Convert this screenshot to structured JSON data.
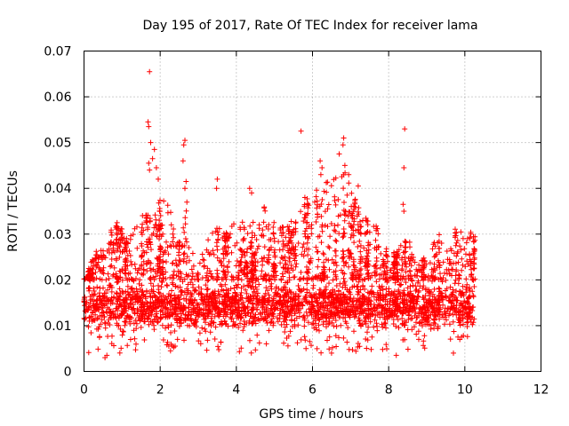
{
  "chart_data": {
    "type": "scatter",
    "title": "Day 195 of 2017, Rate Of TEC Index for receiver lama",
    "xlabel": "GPS time / hours",
    "ylabel": "ROTI / TECUs",
    "xlim": [
      0,
      12
    ],
    "ylim": [
      0,
      0.07
    ],
    "x_ticks": [
      "0",
      "2",
      "4",
      "6",
      "8",
      "10",
      "12"
    ],
    "y_ticks": [
      "0",
      "0.01",
      "0.02",
      "0.03",
      "0.04",
      "0.05",
      "0.06",
      "0.07"
    ],
    "grid": true,
    "marker": "+",
    "color": "#ff0000",
    "series": [
      {
        "name": "ROTI",
        "x_range_hours": [
          0,
          10.25
        ],
        "typical_band": [
          0.007,
          0.02
        ],
        "approx_upper_envelope": [
          [
            0.1,
            0.021
          ],
          [
            0.3,
            0.028
          ],
          [
            0.5,
            0.027
          ],
          [
            0.7,
            0.031
          ],
          [
            0.9,
            0.033
          ],
          [
            1.1,
            0.029
          ],
          [
            1.3,
            0.033
          ],
          [
            1.5,
            0.034
          ],
          [
            1.8,
            0.035
          ],
          [
            2.0,
            0.038
          ],
          [
            2.2,
            0.037
          ],
          [
            2.5,
            0.029
          ],
          [
            2.7,
            0.037
          ],
          [
            3.0,
            0.024
          ],
          [
            3.3,
            0.031
          ],
          [
            3.5,
            0.033
          ],
          [
            3.8,
            0.031
          ],
          [
            4.0,
            0.034
          ],
          [
            4.3,
            0.032
          ],
          [
            4.5,
            0.034
          ],
          [
            4.8,
            0.037
          ],
          [
            5.0,
            0.033
          ],
          [
            5.3,
            0.032
          ],
          [
            5.6,
            0.034
          ],
          [
            5.9,
            0.038
          ],
          [
            6.2,
            0.041
          ],
          [
            6.5,
            0.042
          ],
          [
            6.8,
            0.045
          ],
          [
            7.0,
            0.04
          ],
          [
            7.3,
            0.035
          ],
          [
            7.6,
            0.034
          ],
          [
            7.9,
            0.027
          ],
          [
            8.2,
            0.026
          ],
          [
            8.5,
            0.03
          ],
          [
            8.7,
            0.024
          ],
          [
            9.0,
            0.025
          ],
          [
            9.3,
            0.03
          ],
          [
            9.6,
            0.029
          ],
          [
            9.8,
            0.033
          ],
          [
            10.0,
            0.034
          ],
          [
            10.2,
            0.03
          ]
        ],
        "notable_points": [
          [
            1.72,
            0.0655
          ],
          [
            1.68,
            0.0545
          ],
          [
            1.7,
            0.0535
          ],
          [
            1.75,
            0.05
          ],
          [
            1.85,
            0.0485
          ],
          [
            1.8,
            0.0465
          ],
          [
            1.7,
            0.0455
          ],
          [
            1.9,
            0.0445
          ],
          [
            1.72,
            0.044
          ],
          [
            1.95,
            0.042
          ],
          [
            2.65,
            0.0505
          ],
          [
            2.62,
            0.0495
          ],
          [
            2.6,
            0.046
          ],
          [
            2.68,
            0.0415
          ],
          [
            2.65,
            0.04
          ],
          [
            2.7,
            0.037
          ],
          [
            3.5,
            0.042
          ],
          [
            3.48,
            0.04
          ],
          [
            4.35,
            0.04
          ],
          [
            4.4,
            0.039
          ],
          [
            5.7,
            0.0525
          ],
          [
            5.8,
            0.038
          ],
          [
            6.2,
            0.046
          ],
          [
            6.25,
            0.0445
          ],
          [
            6.22,
            0.043
          ],
          [
            6.7,
            0.0475
          ],
          [
            6.82,
            0.051
          ],
          [
            6.8,
            0.0495
          ],
          [
            6.85,
            0.045
          ],
          [
            6.95,
            0.043
          ],
          [
            7.2,
            0.0405
          ],
          [
            8.42,
            0.053
          ],
          [
            8.4,
            0.0445
          ],
          [
            8.38,
            0.0365
          ],
          [
            8.4,
            0.035
          ]
        ],
        "min_points": [
          [
            0.55,
            0.003
          ],
          [
            0.6,
            0.0035
          ],
          [
            8.2,
            0.0035
          ],
          [
            9.7,
            0.004
          ],
          [
            6.5,
            0.004
          ]
        ]
      }
    ]
  }
}
